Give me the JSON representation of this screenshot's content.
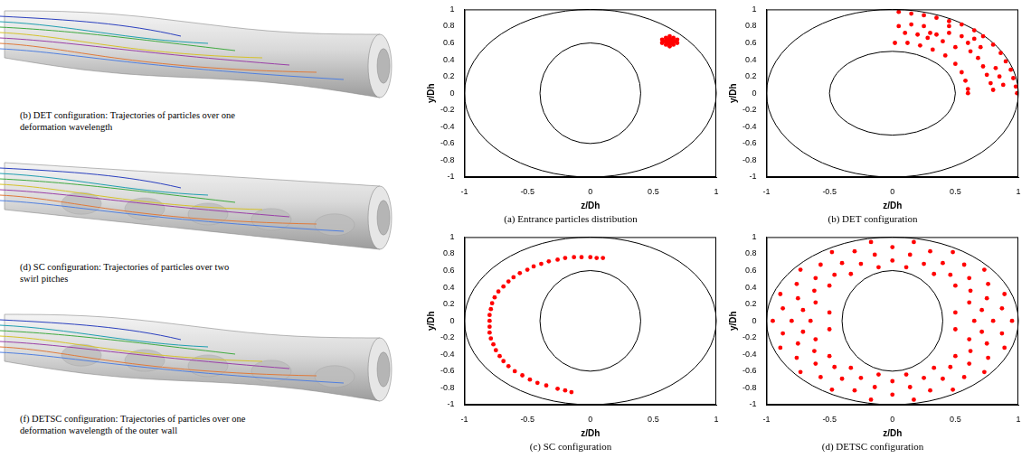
{
  "renderings": [
    {
      "caption": "(b) DET configuration: Trajectories of particles over one deformation wavelength"
    },
    {
      "caption": "(d) SC configuration: Trajectories of particles over two swirl pitches"
    },
    {
      "caption": "(f) DETSC configuration: Trajectories of particles over one deformation wavelength of the outer wall"
    }
  ],
  "chart_data": [
    {
      "type": "scatter",
      "title": "(a) Entrance particles distribution",
      "x_label": "z/Dh",
      "y_label": "y/Dh",
      "xlim": [
        -1,
        1
      ],
      "ylim": [
        -1,
        1
      ],
      "xticks": [
        -1,
        -0.5,
        0,
        0.5,
        1
      ],
      "yticks": [
        -1,
        -0.8,
        -0.6,
        -0.4,
        -0.2,
        0,
        0.2,
        0.4,
        0.6,
        0.8,
        1
      ],
      "grid": false,
      "color": "#ff0000",
      "marker": "circle",
      "walls": [
        {
          "center": [
            0,
            0
          ],
          "radius_z": 1,
          "radius_y": 1
        },
        {
          "center": [
            0,
            0
          ],
          "radius_z": 0.4,
          "radius_y": 0.6
        }
      ],
      "x": [
        0.63,
        0.6,
        0.66,
        0.58,
        0.68,
        0.63,
        0.63,
        0.6,
        0.66,
        0.6,
        0.66,
        0.63,
        0.63,
        0.57,
        0.69,
        0.57,
        0.69,
        0.61,
        0.65,
        0.61,
        0.65
      ],
      "values": [
        0.62,
        0.62,
        0.62,
        0.62,
        0.62,
        0.66,
        0.58,
        0.66,
        0.66,
        0.58,
        0.58,
        0.68,
        0.56,
        0.64,
        0.64,
        0.6,
        0.6,
        0.64,
        0.6,
        0.6,
        0.64
      ]
    },
    {
      "type": "scatter",
      "title": "(b) DET configuration",
      "x_label": "z/Dh",
      "y_label": "y/Dh",
      "xlim": [
        -1,
        1
      ],
      "ylim": [
        -1,
        1
      ],
      "xticks": [
        -1,
        -0.5,
        0,
        0.5,
        1
      ],
      "yticks": [
        -1,
        -0.8,
        -0.6,
        -0.4,
        -0.2,
        0,
        0.2,
        0.4,
        0.6,
        0.8,
        1
      ],
      "grid": false,
      "color": "#ff0000",
      "marker": "circle",
      "walls": [
        {
          "center": [
            0,
            0
          ],
          "radius_z": 1,
          "radius_y": 1
        },
        {
          "center": [
            0,
            0
          ],
          "radius_z": 0.5,
          "radius_y": 0.5
        }
      ],
      "x": [
        0.05,
        0.15,
        0.25,
        0.35,
        0.45,
        0.55,
        0.65,
        0.72,
        0.8,
        0.86,
        0.9,
        0.94,
        0.96,
        0.98,
        0.99,
        0.02,
        0.12,
        0.22,
        0.32,
        0.42,
        0.5,
        0.55,
        0.58,
        0.6,
        0.6,
        0.05,
        0.15,
        0.25,
        0.3,
        0.28,
        0.35,
        0.45,
        0.55,
        0.6,
        0.62,
        0.68,
        0.72,
        0.75,
        0.78,
        0.8,
        0.4,
        0.5,
        0.7,
        0.82,
        0.85,
        0.88,
        0.2,
        0.1,
        0.45,
        0.65
      ],
      "values": [
        0.97,
        0.95,
        0.93,
        0.9,
        0.86,
        0.82,
        0.75,
        0.68,
        0.58,
        0.48,
        0.38,
        0.28,
        0.18,
        0.08,
        0,
        0.6,
        0.6,
        0.57,
        0.52,
        0.45,
        0.35,
        0.25,
        0.15,
        0.05,
        0,
        0.8,
        0.82,
        0.8,
        0.72,
        0.66,
        0.7,
        0.72,
        0.68,
        0.6,
        0.5,
        0.42,
        0.32,
        0.22,
        0.12,
        0.04,
        0.62,
        0.55,
        0.55,
        0.3,
        0.2,
        0.1,
        0.7,
        0.72,
        0.8,
        0.65
      ]
    },
    {
      "type": "scatter",
      "title": "(c) SC configuration",
      "x_label": "z/Dh",
      "y_label": "y/Dh",
      "xlim": [
        -1,
        1
      ],
      "ylim": [
        -1,
        1
      ],
      "xticks": [
        -1,
        -0.5,
        0,
        0.5,
        1
      ],
      "yticks": [
        -1,
        -0.8,
        -0.6,
        -0.4,
        -0.2,
        0,
        0.2,
        0.4,
        0.6,
        0.8,
        1
      ],
      "grid": false,
      "color": "#ff0000",
      "marker": "circle",
      "walls": [
        {
          "center": [
            0,
            0
          ],
          "radius_z": 1,
          "radius_y": 1
        },
        {
          "center": [
            0,
            0
          ],
          "radius_z": 0.4,
          "radius_y": 0.6
        }
      ],
      "x": [
        0.1,
        0.05,
        0,
        -0.07,
        -0.13,
        -0.2,
        -0.26,
        -0.33,
        -0.39,
        -0.45,
        -0.5,
        -0.56,
        -0.61,
        -0.65,
        -0.69,
        -0.73,
        -0.76,
        -0.78,
        -0.79,
        -0.8,
        -0.8,
        -0.8,
        -0.8,
        -0.79,
        -0.77,
        -0.75,
        -0.72,
        -0.69,
        -0.65,
        -0.6,
        -0.54,
        -0.48,
        -0.42,
        -0.35,
        -0.26,
        -0.2,
        -0.15
      ],
      "values": [
        0.75,
        0.75,
        0.76,
        0.76,
        0.76,
        0.75,
        0.73,
        0.71,
        0.68,
        0.65,
        0.61,
        0.57,
        0.52,
        0.47,
        0.41,
        0.35,
        0.28,
        0.21,
        0.14,
        0.07,
        0,
        -0.07,
        -0.14,
        -0.21,
        -0.28,
        -0.35,
        -0.42,
        -0.48,
        -0.54,
        -0.6,
        -0.65,
        -0.7,
        -0.74,
        -0.77,
        -0.81,
        -0.83,
        -0.85
      ]
    },
    {
      "type": "scatter",
      "title": "(d) DETSC configuration",
      "x_label": "z/Dh",
      "y_label": "y/Dh",
      "xlim": [
        -1,
        1
      ],
      "ylim": [
        -1,
        1
      ],
      "xticks": [
        -1,
        -0.5,
        0,
        0.5,
        1
      ],
      "yticks": [
        -1,
        -0.8,
        -0.6,
        -0.4,
        -0.2,
        0,
        0.2,
        0.4,
        0.6,
        0.8,
        1
      ],
      "grid": false,
      "color": "#ff0000",
      "marker": "circle",
      "walls": [
        {
          "center": [
            0,
            0
          ],
          "radius_z": 1,
          "radius_y": 1
        },
        {
          "center": [
            0,
            0
          ],
          "radius_z": 0.4,
          "radius_y": 0.6
        }
      ],
      "x": [
        0.65,
        0.61,
        0.5,
        0.33,
        0.11,
        -0.11,
        -0.33,
        -0.5,
        -0.61,
        -0.65,
        -0.61,
        -0.5,
        -0.33,
        -0.11,
        0.11,
        0.33,
        0.5,
        0.61,
        0.8,
        0.75,
        0.61,
        0.4,
        0.14,
        -0.14,
        -0.4,
        -0.61,
        -0.75,
        -0.8,
        -0.75,
        -0.61,
        -0.4,
        -0.14,
        0.14,
        0.4,
        0.61,
        0.75,
        0.95,
        0.89,
        0.73,
        0.48,
        0.17,
        -0.17,
        -0.48,
        -0.73,
        -0.89,
        -0.95,
        -0.89,
        -0.73,
        -0.48,
        -0.17,
        0.17,
        0.48,
        0.73,
        0.89,
        0.71,
        0.62,
        0.46,
        0.25,
        0,
        -0.25,
        -0.46,
        -0.62,
        -0.71,
        -0.71,
        -0.62,
        -0.46,
        -0.25,
        0,
        0.25,
        0.46,
        0.62,
        0.71,
        0.87,
        0.76,
        0.57,
        0.3,
        0,
        -0.3,
        -0.57,
        -0.76,
        -0.87,
        -0.87,
        -0.76,
        -0.57,
        -0.3,
        0,
        0.3,
        0.57,
        0.76,
        0.87,
        0.5,
        0.5,
        -0.5,
        -0.5
      ],
      "values": [
        0,
        0.22,
        0.42,
        0.56,
        0.64,
        0.64,
        0.56,
        0.42,
        0.22,
        0,
        -0.22,
        -0.42,
        -0.56,
        -0.64,
        -0.64,
        -0.56,
        -0.42,
        -0.22,
        0,
        0.27,
        0.51,
        0.69,
        0.79,
        0.79,
        0.69,
        0.51,
        0.27,
        0,
        -0.27,
        -0.51,
        -0.69,
        -0.79,
        -0.79,
        -0.69,
        -0.51,
        -0.27,
        0,
        0.32,
        0.61,
        0.82,
        0.94,
        0.94,
        0.82,
        0.61,
        0.32,
        0,
        -0.32,
        -0.61,
        -0.82,
        -0.94,
        -0.94,
        -0.82,
        -0.61,
        -0.32,
        0.13,
        0.36,
        0.55,
        0.68,
        0.72,
        0.68,
        0.55,
        0.36,
        0.13,
        -0.13,
        -0.36,
        -0.55,
        -0.68,
        -0.72,
        -0.68,
        -0.55,
        -0.36,
        -0.13,
        0.15,
        0.44,
        0.67,
        0.83,
        0.88,
        0.83,
        0.67,
        0.44,
        0.15,
        -0.15,
        -0.44,
        -0.67,
        -0.83,
        -0.88,
        -0.83,
        -0.67,
        -0.44,
        -0.15,
        0.1,
        -0.1,
        0.1,
        -0.1
      ]
    }
  ]
}
